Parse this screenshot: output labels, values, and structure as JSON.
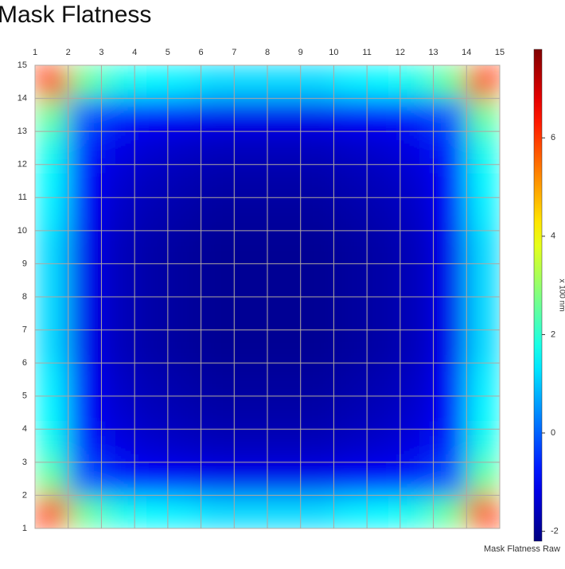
{
  "chart_data": {
    "type": "heatmap",
    "title": "Mask Flatness",
    "xlim": [
      1,
      15
    ],
    "xticks": [
      1,
      2,
      3,
      4,
      5,
      6,
      7,
      8,
      9,
      10,
      11,
      12,
      13,
      14,
      15
    ],
    "ylim": [
      1,
      15
    ],
    "yticks": [
      1,
      2,
      3,
      4,
      5,
      6,
      7,
      8,
      9,
      10,
      11,
      12,
      13,
      14,
      15
    ],
    "grid": true,
    "colormap": "jet",
    "zlim": [
      -2.2,
      7.8
    ],
    "zticks": [
      -2,
      0,
      2,
      4,
      6
    ],
    "colorbar_label": "x 100 nm",
    "series_name": "Mask Flatness Raw",
    "z": [
      [
        6.0,
        2.6,
        1.8,
        1.5,
        1.4,
        1.2,
        1.2,
        1.2,
        1.2,
        1.4,
        1.5,
        1.8,
        2.6,
        6.0
      ],
      [
        2.6,
        -0.1,
        -0.6,
        -0.9,
        -1.0,
        -1.1,
        -1.1,
        -1.1,
        -1.1,
        -1.0,
        -0.9,
        -0.6,
        -0.1,
        2.6
      ],
      [
        1.8,
        -0.6,
        -1.2,
        -1.4,
        -1.5,
        -1.6,
        -1.6,
        -1.6,
        -1.6,
        -1.5,
        -1.4,
        -1.2,
        -0.6,
        1.8
      ],
      [
        1.5,
        -0.9,
        -1.4,
        -1.6,
        -1.7,
        -1.8,
        -1.8,
        -1.8,
        -1.8,
        -1.7,
        -1.6,
        -1.4,
        -0.9,
        1.5
      ],
      [
        1.4,
        -1.0,
        -1.5,
        -1.7,
        -1.8,
        -1.9,
        -1.9,
        -1.9,
        -1.9,
        -1.8,
        -1.7,
        -1.5,
        -1.0,
        1.4
      ],
      [
        1.2,
        -1.1,
        -1.6,
        -1.8,
        -1.9,
        -2.0,
        -2.0,
        -2.0,
        -2.0,
        -1.9,
        -1.8,
        -1.6,
        -1.1,
        1.2
      ],
      [
        1.2,
        -1.1,
        -1.6,
        -1.8,
        -1.9,
        -2.0,
        -2.0,
        -2.0,
        -2.0,
        -1.9,
        -1.8,
        -1.6,
        -1.1,
        1.2
      ],
      [
        1.2,
        -1.1,
        -1.6,
        -1.8,
        -1.9,
        -2.0,
        -2.0,
        -2.0,
        -2.0,
        -1.9,
        -1.8,
        -1.6,
        -1.1,
        1.2
      ],
      [
        1.2,
        -1.1,
        -1.6,
        -1.8,
        -1.9,
        -2.0,
        -2.0,
        -2.0,
        -2.0,
        -1.9,
        -1.8,
        -1.6,
        -1.1,
        1.2
      ],
      [
        1.4,
        -1.0,
        -1.5,
        -1.7,
        -1.8,
        -1.9,
        -1.9,
        -1.9,
        -1.9,
        -1.8,
        -1.7,
        -1.5,
        -1.0,
        1.4
      ],
      [
        1.5,
        -0.9,
        -1.4,
        -1.6,
        -1.7,
        -1.8,
        -1.8,
        -1.8,
        -1.8,
        -1.7,
        -1.6,
        -1.4,
        -0.9,
        1.5
      ],
      [
        1.8,
        -0.6,
        -1.2,
        -1.4,
        -1.5,
        -1.6,
        -1.6,
        -1.6,
        -1.6,
        -1.5,
        -1.4,
        -1.2,
        -0.6,
        1.8
      ],
      [
        2.6,
        -0.1,
        -0.6,
        -0.9,
        -1.0,
        -1.1,
        -1.1,
        -1.1,
        -1.1,
        -1.0,
        -0.9,
        -0.6,
        -0.1,
        2.6
      ],
      [
        6.0,
        2.6,
        1.8,
        1.5,
        1.4,
        1.2,
        1.2,
        1.2,
        1.2,
        1.4,
        1.5,
        1.8,
        2.6,
        6.0
      ]
    ]
  }
}
